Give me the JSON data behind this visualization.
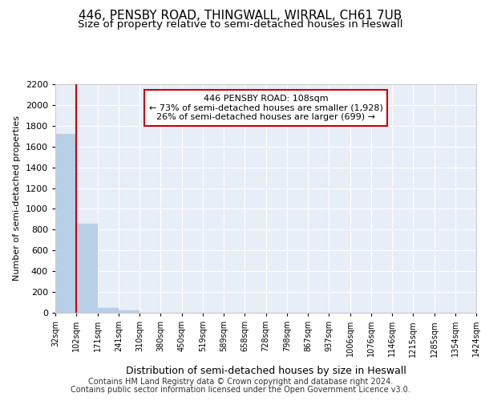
{
  "title": "446, PENSBY ROAD, THINGWALL, WIRRAL, CH61 7UB",
  "subtitle": "Size of property relative to semi-detached houses in Heswall",
  "xlabel": "Distribution of semi-detached houses by size in Heswall",
  "ylabel": "Number of semi-detached properties",
  "bins": [
    "32sqm",
    "102sqm",
    "171sqm",
    "241sqm",
    "310sqm",
    "380sqm",
    "450sqm",
    "519sqm",
    "589sqm",
    "658sqm",
    "728sqm",
    "798sqm",
    "867sqm",
    "937sqm",
    "1006sqm",
    "1076sqm",
    "1146sqm",
    "1215sqm",
    "1285sqm",
    "1354sqm",
    "1424sqm"
  ],
  "bar_values": [
    1720,
    860,
    48,
    20,
    0,
    0,
    0,
    0,
    0,
    0,
    0,
    0,
    0,
    0,
    0,
    0,
    0,
    0,
    0,
    0
  ],
  "bar_color": "#b8cfe8",
  "property_bin_index": 1,
  "vline_color": "#cc0000",
  "annotation_text": "446 PENSBY ROAD: 108sqm\n← 73% of semi-detached houses are smaller (1,928)\n26% of semi-detached houses are larger (699) →",
  "annotation_box_color": "#ffffff",
  "annotation_box_edge": "#cc0000",
  "ylim": [
    0,
    2200
  ],
  "yticks": [
    0,
    200,
    400,
    600,
    800,
    1000,
    1200,
    1400,
    1600,
    1800,
    2000,
    2200
  ],
  "footer_line1": "Contains HM Land Registry data © Crown copyright and database right 2024.",
  "footer_line2": "Contains public sector information licensed under the Open Government Licence v3.0.",
  "bg_color": "#e8eef8",
  "grid_color": "#ffffff",
  "title_fontsize": 11,
  "subtitle_fontsize": 9.5,
  "footer_fontsize": 7
}
